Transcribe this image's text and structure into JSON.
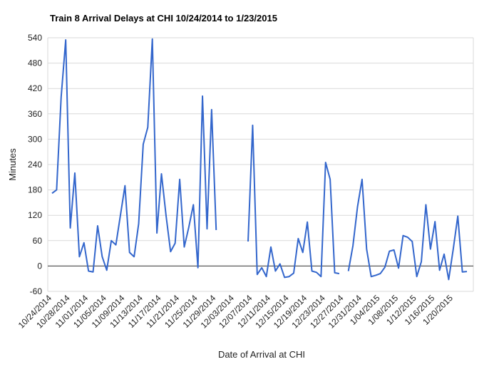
{
  "chart_data": {
    "type": "line",
    "title": "Train 8 Arrival Delays at CHI 10/24/2014 to 1/23/2015",
    "xlabel": "Date of Arrival at CHI",
    "ylabel": "Minutes",
    "ylim": [
      -60,
      540
    ],
    "yticks": [
      -60,
      0,
      60,
      120,
      180,
      240,
      300,
      360,
      420,
      480,
      540
    ],
    "x_start": "2014-10-24",
    "x_end": "2015-01-23",
    "xtick_labels": [
      "10/24/2014",
      "10/28/2014",
      "11/01/2014",
      "11/05/2014",
      "11/09/2014",
      "11/13/2014",
      "11/17/2014",
      "11/21/2014",
      "11/25/2014",
      "11/29/2014",
      "12/03/2014",
      "12/07/2014",
      "12/11/2014",
      "12/15/2014",
      "12/19/2014",
      "12/23/2014",
      "12/27/2014",
      "12/31/2014",
      "1/04/2015",
      "1/08/2015",
      "1/12/2015",
      "1/16/2015",
      "1/20/2015"
    ],
    "grid": true,
    "legend": "none",
    "series": [
      {
        "color": "#3366cc",
        "x": [
          "2014-10-24",
          "2014-10-25",
          "2014-10-26",
          "2014-10-27",
          "2014-10-28",
          "2014-10-29",
          "2014-10-30",
          "2014-10-31",
          "2014-11-01",
          "2014-11-02",
          "2014-11-03",
          "2014-11-04",
          "2014-11-05",
          "2014-11-06",
          "2014-11-07",
          "2014-11-08",
          "2014-11-09",
          "2014-11-10",
          "2014-11-11",
          "2014-11-12",
          "2014-11-13",
          "2014-11-14",
          "2014-11-15",
          "2014-11-16",
          "2014-11-17",
          "2014-11-18",
          "2014-11-19",
          "2014-11-20",
          "2014-11-21",
          "2014-11-22",
          "2014-11-23",
          "2014-11-24",
          "2014-11-25",
          "2014-11-26",
          "2014-11-27",
          "2014-11-28",
          "2014-11-29",
          "2014-11-30",
          "2014-12-01",
          "2014-12-02",
          "2014-12-03",
          "2014-12-04",
          "2014-12-05",
          "2014-12-06",
          "2014-12-07",
          "2014-12-08",
          "2014-12-09",
          "2014-12-10",
          "2014-12-11",
          "2014-12-12",
          "2014-12-13",
          "2014-12-14",
          "2014-12-15",
          "2014-12-16",
          "2014-12-17",
          "2014-12-18",
          "2014-12-19",
          "2014-12-20",
          "2014-12-21",
          "2014-12-22",
          "2014-12-23",
          "2014-12-24",
          "2014-12-25",
          "2014-12-26",
          "2014-12-27",
          "2014-12-28",
          "2014-12-29",
          "2014-12-30",
          "2014-12-31",
          "2015-01-01",
          "2015-01-02",
          "2015-01-03",
          "2015-01-04",
          "2015-01-05",
          "2015-01-06",
          "2015-01-07",
          "2015-01-08",
          "2015-01-09",
          "2015-01-10",
          "2015-01-11",
          "2015-01-12",
          "2015-01-13",
          "2015-01-14",
          "2015-01-15",
          "2015-01-16",
          "2015-01-17",
          "2015-01-18",
          "2015-01-19",
          "2015-01-20",
          "2015-01-21",
          "2015-01-22",
          "2015-01-23"
        ],
        "y": [
          172,
          180,
          400,
          535,
          90,
          220,
          22,
          55,
          -12,
          -14,
          95,
          22,
          -10,
          60,
          50,
          120,
          190,
          32,
          22,
          100,
          288,
          328,
          537,
          78,
          218,
          120,
          34,
          54,
          205,
          45,
          92,
          145,
          -4,
          402,
          88,
          370,
          85,
          null,
          null,
          null,
          null,
          null,
          null,
          58,
          333,
          -20,
          -4,
          -25,
          45,
          -12,
          5,
          -27,
          -25,
          -17,
          65,
          32,
          104,
          -12,
          -15,
          -25,
          245,
          205,
          -16,
          -18,
          null,
          -12,
          48,
          140,
          205,
          40,
          -25,
          -22,
          -18,
          -3,
          35,
          38,
          -5,
          72,
          68,
          58,
          -25,
          10,
          145,
          40,
          105,
          -10,
          28,
          -32,
          40,
          118,
          -14,
          -13
        ]
      }
    ]
  }
}
